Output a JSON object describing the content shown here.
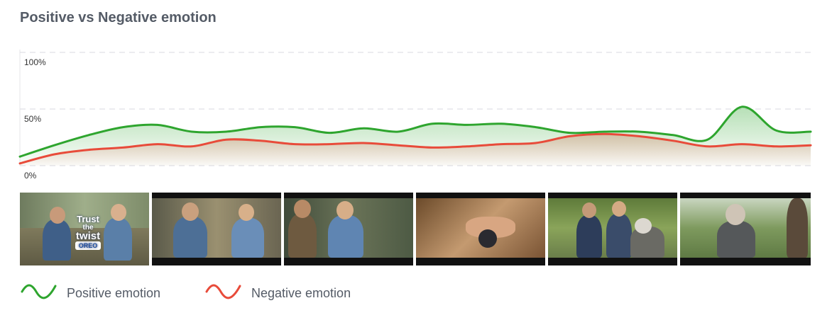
{
  "title": "Positive vs Negative emotion",
  "chart_data": {
    "type": "area",
    "ylim": [
      0,
      100
    ],
    "y_ticks": [
      "100%",
      "50%",
      "0%"
    ],
    "grid": true,
    "legend_position": "bottom-left",
    "series": [
      {
        "name": "Positive emotion",
        "color": "#2ea52e",
        "values": [
          8,
          18,
          27,
          34,
          36,
          30,
          30,
          34,
          34,
          29,
          33,
          30,
          37,
          36,
          37,
          34,
          29,
          30,
          30,
          27,
          23,
          52,
          31,
          30
        ]
      },
      {
        "name": "Negative emotion",
        "color": "#e84b3a",
        "values": [
          2,
          10,
          14,
          16,
          19,
          17,
          23,
          22,
          19,
          19,
          20,
          18,
          16,
          17,
          19,
          20,
          26,
          28,
          26,
          22,
          17,
          19,
          17,
          18
        ]
      }
    ]
  },
  "thumbnails": [
    {
      "overlay_lines": [
        "Trust",
        "the",
        "twist",
        "OREO"
      ]
    },
    {
      "overlay_lines": []
    },
    {
      "overlay_lines": []
    },
    {
      "overlay_lines": []
    },
    {
      "overlay_lines": []
    },
    {
      "overlay_lines": []
    }
  ]
}
